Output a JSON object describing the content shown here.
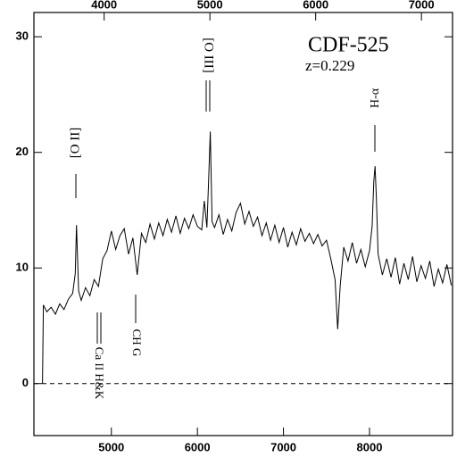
{
  "chart_data": {
    "type": "line",
    "x": [
      4200,
      4210,
      4250,
      4300,
      4350,
      4400,
      4450,
      4500,
      4550,
      4580,
      4595,
      4620,
      4650,
      4700,
      4750,
      4800,
      4850,
      4900,
      4950,
      5000,
      5050,
      5100,
      5150,
      5200,
      5250,
      5300,
      5350,
      5400,
      5450,
      5500,
      5550,
      5600,
      5650,
      5700,
      5750,
      5800,
      5850,
      5900,
      5950,
      6000,
      6050,
      6080,
      6110,
      6130,
      6150,
      6170,
      6200,
      6250,
      6300,
      6350,
      6400,
      6450,
      6500,
      6550,
      6600,
      6650,
      6700,
      6750,
      6800,
      6850,
      6900,
      6950,
      7000,
      7050,
      7100,
      7150,
      7200,
      7250,
      7300,
      7350,
      7400,
      7450,
      7500,
      7550,
      7600,
      7630,
      7660,
      7700,
      7750,
      7800,
      7850,
      7900,
      7950,
      8000,
      8030,
      8050,
      8065,
      8080,
      8100,
      8150,
      8200,
      8250,
      8300,
      8350,
      8400,
      8450,
      8500,
      8550,
      8600,
      8650,
      8700,
      8750,
      8800,
      8850,
      8900,
      8950
    ],
    "series": [
      {
        "color": "#000000",
        "values": [
          0,
          6.8,
          6.2,
          6.6,
          6.0,
          6.9,
          6.4,
          7.3,
          7.8,
          9.5,
          13.7,
          8.0,
          7.2,
          8.3,
          7.6,
          9.0,
          8.4,
          10.8,
          11.5,
          13.2,
          11.6,
          12.8,
          13.4,
          11.2,
          12.6,
          9.4,
          13.0,
          12.2,
          13.8,
          12.5,
          13.9,
          12.8,
          14.2,
          13.1,
          14.5,
          13.0,
          14.3,
          13.4,
          14.6,
          13.6,
          13.3,
          15.8,
          13.5,
          17.5,
          21.8,
          14.0,
          13.5,
          14.6,
          12.9,
          14.2,
          13.2,
          14.8,
          15.6,
          13.8,
          14.9,
          13.6,
          14.4,
          12.8,
          13.9,
          12.4,
          13.7,
          12.2,
          13.5,
          11.8,
          13.1,
          12.0,
          13.4,
          12.3,
          13.0,
          12.1,
          12.9,
          11.9,
          12.4,
          10.8,
          9.0,
          4.7,
          8.5,
          11.8,
          10.6,
          12.2,
          10.4,
          11.6,
          10.1,
          11.5,
          13.6,
          17.5,
          18.8,
          16.0,
          11.2,
          9.4,
          10.8,
          9.2,
          10.9,
          8.6,
          10.4,
          9.0,
          11.0,
          8.8,
          10.2,
          9.1,
          10.6,
          8.4,
          9.9,
          8.7,
          10.3,
          8.5
        ]
      }
    ],
    "xlim": [
      4100,
      8965
    ],
    "xticks": [
      5000,
      6000,
      7000,
      8000
    ],
    "x2lim": [
      3336,
      7294
    ],
    "x2ticks": [
      4000,
      5000,
      6000,
      7000
    ],
    "ylim": [
      -4.5,
      32.1
    ],
    "yticks": [
      0,
      10,
      20,
      30
    ],
    "annotations": [
      "CDF-525",
      "z=0.229",
      "[O II]",
      "[O III]",
      "H-α",
      "Ca II H&K",
      "CH G"
    ]
  }
}
